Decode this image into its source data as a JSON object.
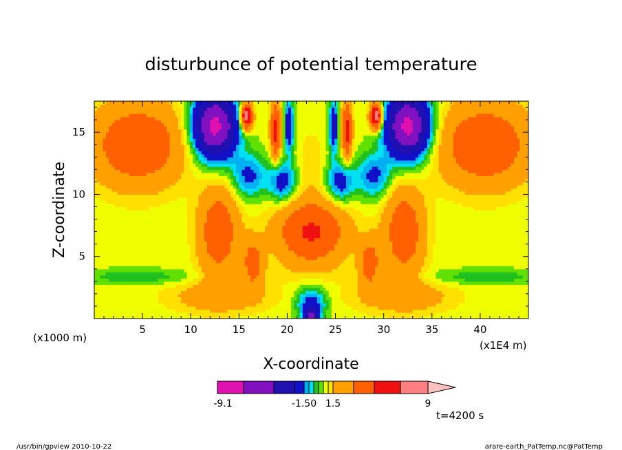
{
  "chart_data": {
    "type": "heatmap",
    "title": "disturbunce of potential temperature",
    "xlabel": "X-coordinate",
    "ylabel": "Z-coordinate",
    "x_unit_label": "(x1E4 m)",
    "y_unit_label": "(x1000 m)",
    "xlim": [
      0,
      45
    ],
    "ylim": [
      0,
      17.5
    ],
    "x_ticks": [
      "5",
      "10",
      "15",
      "20",
      "25",
      "30",
      "35",
      "40"
    ],
    "x_tick_values": [
      5,
      10,
      15,
      20,
      25,
      30,
      35,
      40
    ],
    "y_ticks": [
      "5",
      "10",
      "15"
    ],
    "y_tick_values": [
      5,
      10,
      15
    ],
    "colorbar": {
      "levels": [
        -9.1,
        -7.5,
        -5.0,
        -3.0,
        -1.5,
        -1.0,
        -0.5,
        0,
        0.5,
        1.0,
        1.5,
        3.0,
        5.0,
        7.0,
        9.0
      ],
      "colors": [
        "#e010b0",
        "#8010c0",
        "#2010b0",
        "#1010c8",
        "#00b0f0",
        "#00e0f0",
        "#20c020",
        "#60e000",
        "#f0ff00",
        "#ffe000",
        "#ffa000",
        "#ff6000",
        "#f01010",
        "#ff8080"
      ],
      "over_color": "#ffc0c0",
      "labels": [
        "-9.1",
        "-1.50",
        "1.5",
        "9"
      ],
      "label_values": [
        -9.1,
        -1.5,
        1.5,
        9
      ]
    },
    "annotation": "t=4200 s",
    "background_value": 0.7,
    "features": [
      {
        "x": 4.5,
        "z": 14,
        "sx": 4.5,
        "sz": 3.2,
        "amp": 4.2
      },
      {
        "x": 40.5,
        "z": 14,
        "sx": 4.5,
        "sz": 3.2,
        "amp": 4.2
      },
      {
        "x": 12.5,
        "z": 15.5,
        "sx": 2.2,
        "sz": 2.5,
        "amp": -9
      },
      {
        "x": 32.5,
        "z": 15.5,
        "sx": 2.2,
        "sz": 2.5,
        "amp": -9
      },
      {
        "x": 16,
        "z": 11.5,
        "sx": 1.8,
        "sz": 1.8,
        "amp": -2.5
      },
      {
        "x": 29,
        "z": 11.5,
        "sx": 1.8,
        "sz": 1.8,
        "amp": -2.5
      },
      {
        "x": 19.5,
        "z": 11,
        "sx": 1.4,
        "sz": 1.6,
        "amp": -3
      },
      {
        "x": 25.5,
        "z": 11,
        "sx": 1.4,
        "sz": 1.6,
        "amp": -3
      },
      {
        "x": 15.8,
        "z": 16.3,
        "sx": 0.6,
        "sz": 1.0,
        "amp": 8
      },
      {
        "x": 29.2,
        "z": 16.3,
        "sx": 0.6,
        "sz": 1.0,
        "amp": 8
      },
      {
        "x": 18.8,
        "z": 15.2,
        "sx": 0.5,
        "sz": 2.3,
        "amp": 5
      },
      {
        "x": 26.2,
        "z": 15.2,
        "sx": 0.5,
        "sz": 2.3,
        "amp": 5
      },
      {
        "x": 20.2,
        "z": 15.5,
        "sx": 0.45,
        "sz": 2.0,
        "amp": -4
      },
      {
        "x": 24.8,
        "z": 15.5,
        "sx": 0.45,
        "sz": 2.0,
        "amp": -4
      },
      {
        "x": 12.9,
        "z": 7,
        "sx": 2.0,
        "sz": 3.5,
        "amp": 3.8
      },
      {
        "x": 32.1,
        "z": 7,
        "sx": 2.0,
        "sz": 3.5,
        "amp": 3.8
      },
      {
        "x": 16.5,
        "z": 4.5,
        "sx": 1.0,
        "sz": 1.8,
        "amp": 3.5
      },
      {
        "x": 28.5,
        "z": 4.5,
        "sx": 1.0,
        "sz": 1.8,
        "amp": 3.5
      },
      {
        "x": 22.5,
        "z": 7,
        "sx": 3.5,
        "sz": 2.6,
        "amp": 4.6
      },
      {
        "x": 22.5,
        "z": 1.2,
        "sx": 1.5,
        "sz": 1.3,
        "amp": -3
      },
      {
        "x": 22.5,
        "z": 0.2,
        "sx": 0.7,
        "sz": 0.6,
        "amp": -5
      },
      {
        "x": 4.5,
        "z": 3.4,
        "sx": 6,
        "sz": 0.6,
        "amp": -1.1
      },
      {
        "x": 40.5,
        "z": 3.4,
        "sx": 6,
        "sz": 0.6,
        "amp": -1.1
      },
      {
        "x": 13,
        "z": 1.8,
        "sx": 5,
        "sz": 1.3,
        "amp": 1.6
      },
      {
        "x": 32,
        "z": 1.8,
        "sx": 5,
        "sz": 1.3,
        "amp": 1.6
      },
      {
        "x": 22.5,
        "z": 12.8,
        "sx": 1.2,
        "sz": 2.5,
        "amp": 0.6
      }
    ]
  },
  "footer": {
    "left": "/usr/bin/gpview   2010-10-22",
    "right": "arare-earth_PatTemp.nc@PatTemp"
  }
}
